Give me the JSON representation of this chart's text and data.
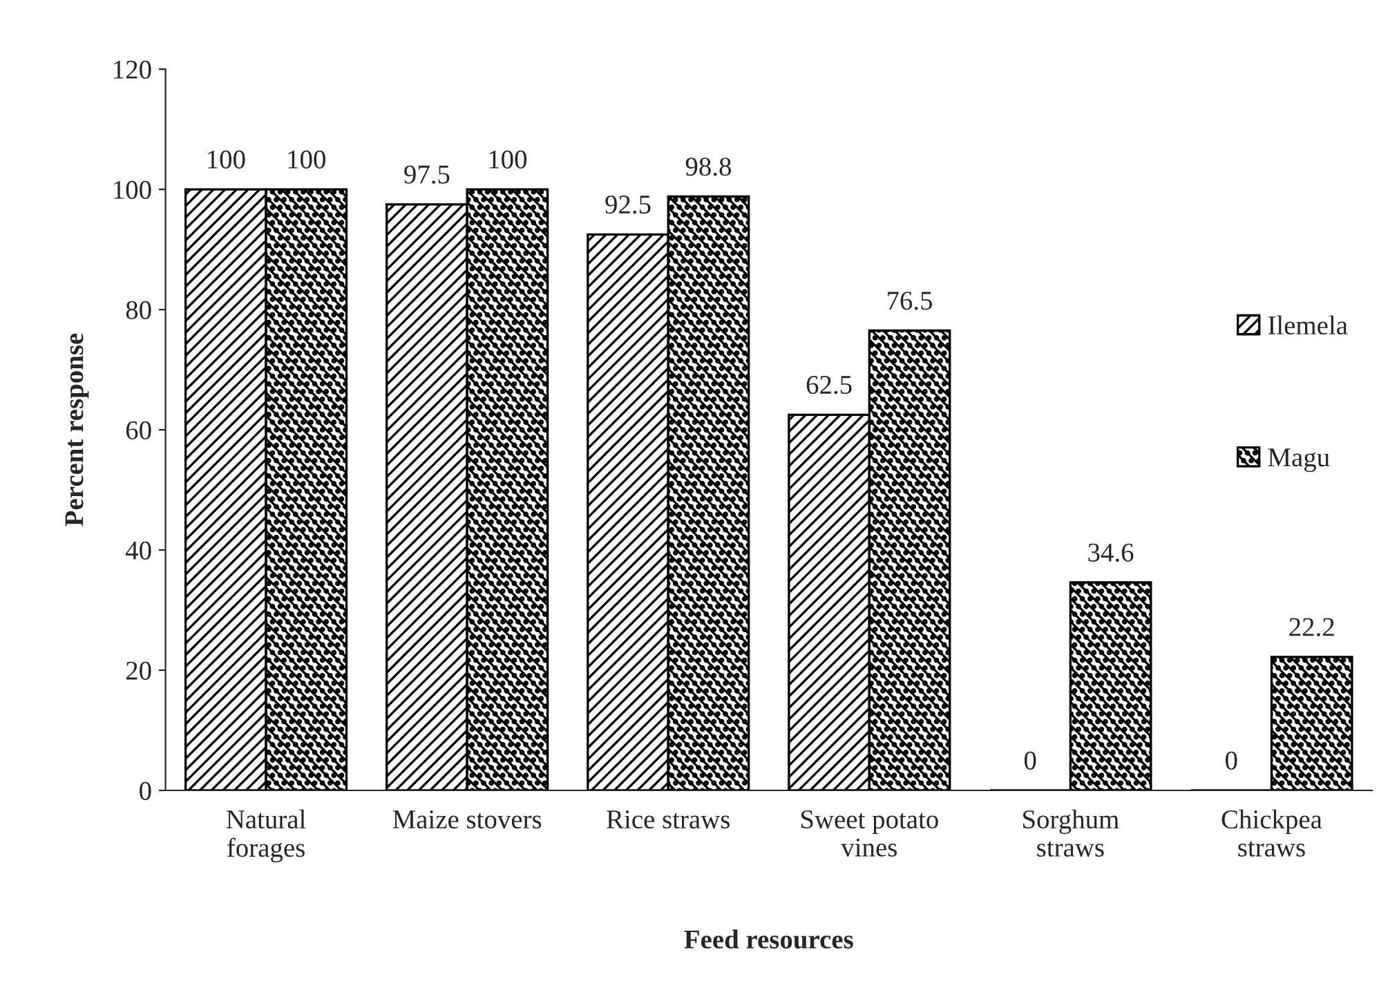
{
  "chart_data": {
    "type": "bar",
    "xlabel": "Feed resources",
    "ylabel": "Percent response",
    "categories": [
      "Natural\nforages",
      "Maize stovers",
      "Rice straws",
      "Sweet potato\nvines",
      "Sorghum\nstraws",
      "Chickpea\nstraws"
    ],
    "series": [
      {
        "name": "Ilemela",
        "color": "#000000",
        "values": [
          100,
          97.5,
          92.5,
          62.5,
          0,
          0
        ]
      },
      {
        "name": "Magu",
        "color": "#000000",
        "values": [
          100,
          100,
          98.8,
          76.5,
          34.6,
          22.2
        ]
      }
    ],
    "ylim": [
      0,
      120
    ],
    "yticks": [
      0,
      20,
      40,
      60,
      80,
      100,
      120
    ],
    "data_labels": true,
    "legend": "right",
    "grid": false
  }
}
